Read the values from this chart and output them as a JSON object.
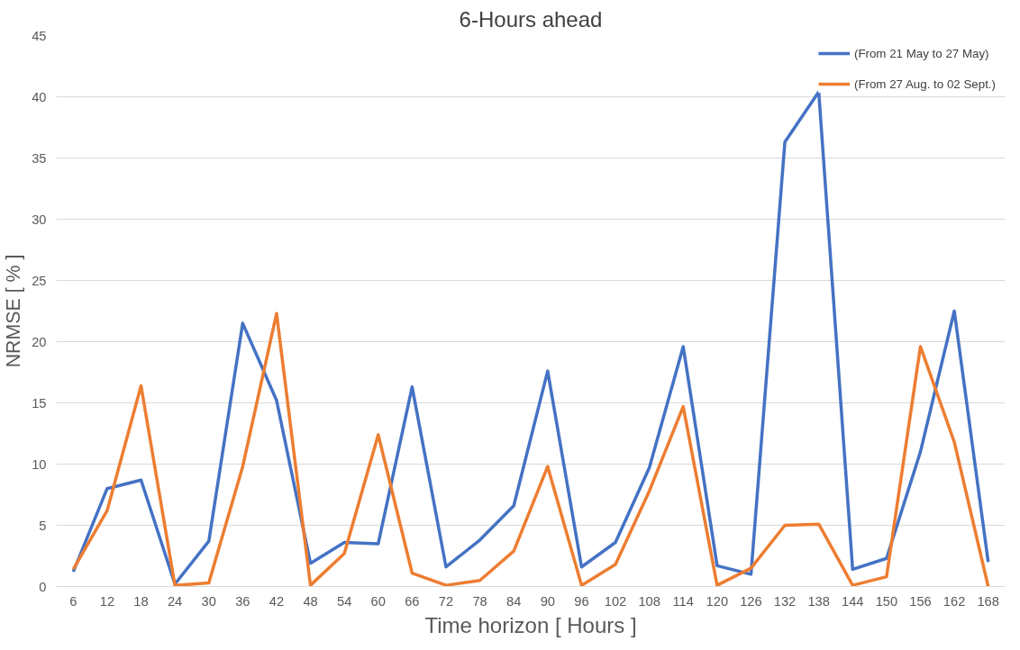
{
  "chart_data": {
    "type": "line",
    "title": "6-Hours ahead",
    "xlabel": "Time horizon [ Hours ]",
    "ylabel": "NRMSE [ % ]",
    "categories": [
      "6",
      "12",
      "18",
      "24",
      "30",
      "36",
      "42",
      "48",
      "54",
      "60",
      "66",
      "72",
      "78",
      "84",
      "90",
      "96",
      "102",
      "108",
      "114",
      "120",
      "126",
      "132",
      "138",
      "144",
      "150",
      "156",
      "162",
      "168"
    ],
    "series": [
      {
        "name": "(From 21 May to 27 May)",
        "color": "#4472c4",
        "values": [
          1.2,
          8.0,
          8.7,
          0.2,
          3.7,
          21.5,
          15.2,
          1.9,
          3.6,
          3.5,
          16.3,
          1.6,
          3.8,
          6.6,
          17.6,
          1.6,
          3.6,
          9.7,
          19.6,
          1.7,
          1.0,
          36.3,
          40.4,
          1.4,
          2.3,
          11.0,
          22.5,
          2.0
        ]
      },
      {
        "name": "(From 27 Aug. to 02 Sept.)",
        "color": "#ed7d31",
        "values": [
          1.4,
          6.2,
          16.4,
          0.1,
          0.3,
          9.8,
          22.3,
          0.1,
          2.7,
          12.4,
          1.1,
          0.1,
          0.5,
          2.9,
          9.8,
          0.1,
          1.8,
          7.8,
          14.7,
          0.1,
          1.5,
          5.0,
          5.1,
          0.1,
          0.8,
          19.6,
          11.8,
          0.0
        ]
      }
    ],
    "ylim": [
      0,
      45
    ],
    "yticks": [
      0,
      5,
      10,
      15,
      20,
      25,
      30,
      35,
      40,
      45
    ],
    "grid": "y",
    "legend": "top right",
    "marker": "none",
    "line_style": "solid"
  }
}
